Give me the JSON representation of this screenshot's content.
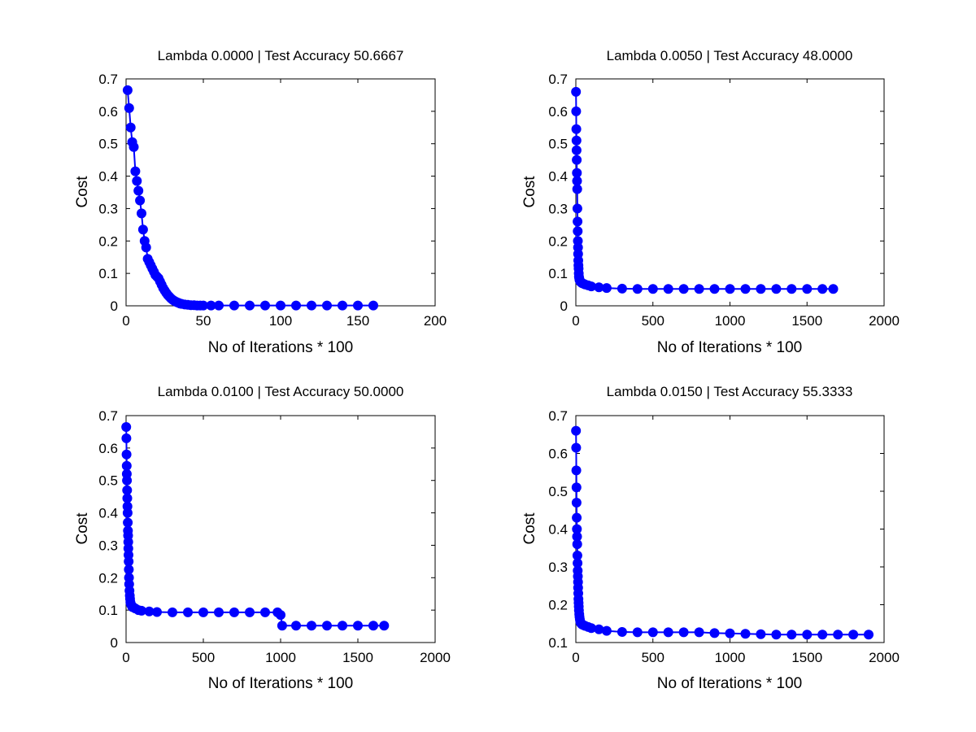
{
  "colors": {
    "series": "#0000ff",
    "axes": "#000000",
    "background": "#ffffff"
  },
  "chart_data": [
    {
      "type": "line",
      "marker": "circle",
      "title": "Lambda 0.0000 | Test Accuracy 50.6667",
      "xlabel": "No of Iterations * 100",
      "ylabel": "Cost",
      "xlim": [
        0,
        200
      ],
      "ylim": [
        0,
        0.7
      ],
      "xticks": [
        0,
        50,
        100,
        150,
        200
      ],
      "yticks": [
        0,
        0.1,
        0.2,
        0.3,
        0.4,
        0.5,
        0.6,
        0.7
      ],
      "grid": false,
      "series": [
        {
          "x": [
            1,
            2,
            3,
            4,
            5,
            6,
            7,
            8,
            9,
            10,
            11,
            12,
            13,
            14,
            15,
            16,
            17,
            18,
            19,
            20,
            21,
            22,
            23,
            24,
            25,
            26,
            27,
            28,
            29,
            30,
            31,
            32,
            33,
            34,
            35,
            36,
            38,
            40,
            42,
            44,
            46,
            48,
            50,
            55,
            60,
            70,
            80,
            90,
            100,
            110,
            120,
            130,
            140,
            150,
            160
          ],
          "y": [
            0.665,
            0.61,
            0.55,
            0.505,
            0.49,
            0.415,
            0.385,
            0.355,
            0.325,
            0.285,
            0.235,
            0.2,
            0.18,
            0.145,
            0.135,
            0.125,
            0.115,
            0.105,
            0.095,
            0.09,
            0.085,
            0.075,
            0.065,
            0.055,
            0.047,
            0.04,
            0.033,
            0.028,
            0.023,
            0.019,
            0.016,
            0.013,
            0.011,
            0.009,
            0.007,
            0.006,
            0.004,
            0.003,
            0.002,
            0.002,
            0.001,
            0.001,
            0.001,
            0.001,
            0.001,
            0.001,
            0.001,
            0.001,
            0.001,
            0.001,
            0.001,
            0.001,
            0.001,
            0.001,
            0.001
          ]
        }
      ]
    },
    {
      "type": "line",
      "marker": "circle",
      "title": "Lambda 0.0050 | Test Accuracy 48.0000",
      "xlabel": "No of Iterations * 100",
      "ylabel": "Cost",
      "xlim": [
        0,
        2000
      ],
      "ylim": [
        0,
        0.7
      ],
      "xticks": [
        0,
        500,
        1000,
        1500,
        2000
      ],
      "yticks": [
        0,
        0.1,
        0.2,
        0.3,
        0.4,
        0.5,
        0.6,
        0.7
      ],
      "grid": false,
      "series": [
        {
          "x": [
            1,
            2,
            3,
            4,
            5,
            6,
            7,
            8,
            9,
            10,
            11,
            12,
            13,
            14,
            15,
            16,
            17,
            18,
            19,
            20,
            22,
            24,
            26,
            28,
            30,
            35,
            40,
            50,
            60,
            80,
            100,
            150,
            200,
            300,
            400,
            500,
            600,
            700,
            800,
            900,
            1000,
            1100,
            1200,
            1300,
            1400,
            1500,
            1600,
            1670
          ],
          "y": [
            0.66,
            0.6,
            0.545,
            0.51,
            0.48,
            0.45,
            0.41,
            0.385,
            0.36,
            0.3,
            0.26,
            0.23,
            0.2,
            0.18,
            0.16,
            0.14,
            0.125,
            0.115,
            0.1,
            0.09,
            0.085,
            0.08,
            0.078,
            0.076,
            0.074,
            0.072,
            0.07,
            0.068,
            0.066,
            0.063,
            0.06,
            0.057,
            0.055,
            0.053,
            0.052,
            0.052,
            0.052,
            0.052,
            0.052,
            0.052,
            0.052,
            0.052,
            0.052,
            0.052,
            0.052,
            0.052,
            0.052,
            0.052
          ]
        }
      ]
    },
    {
      "type": "line",
      "marker": "circle",
      "title": "Lambda 0.0100 | Test Accuracy 50.0000",
      "xlabel": "No of Iterations * 100",
      "ylabel": "Cost",
      "xlim": [
        0,
        2000
      ],
      "ylim": [
        0,
        0.7
      ],
      "xticks": [
        0,
        500,
        1000,
        1500,
        2000
      ],
      "yticks": [
        0,
        0.1,
        0.2,
        0.3,
        0.4,
        0.5,
        0.6,
        0.7
      ],
      "grid": false,
      "series": [
        {
          "x": [
            1,
            2,
            3,
            4,
            5,
            6,
            7,
            8,
            9,
            10,
            11,
            12,
            13,
            14,
            15,
            16,
            17,
            18,
            19,
            20,
            22,
            24,
            26,
            28,
            30,
            35,
            40,
            50,
            60,
            80,
            100,
            150,
            200,
            300,
            400,
            500,
            600,
            700,
            800,
            900,
            980,
            1000,
            1010,
            1100,
            1200,
            1300,
            1400,
            1500,
            1600,
            1670
          ],
          "y": [
            0.665,
            0.63,
            0.58,
            0.545,
            0.52,
            0.5,
            0.47,
            0.445,
            0.42,
            0.4,
            0.37,
            0.345,
            0.33,
            0.31,
            0.29,
            0.27,
            0.25,
            0.225,
            0.2,
            0.18,
            0.16,
            0.145,
            0.135,
            0.125,
            0.12,
            0.115,
            0.11,
            0.108,
            0.105,
            0.1,
            0.098,
            0.096,
            0.094,
            0.093,
            0.093,
            0.093,
            0.093,
            0.093,
            0.093,
            0.093,
            0.093,
            0.085,
            0.052,
            0.052,
            0.052,
            0.052,
            0.052,
            0.052,
            0.052,
            0.052
          ]
        }
      ]
    },
    {
      "type": "line",
      "marker": "circle",
      "title": "Lambda 0.0150 | Test Accuracy 55.3333",
      "xlabel": "No of Iterations * 100",
      "ylabel": "Cost",
      "xlim": [
        0,
        2000
      ],
      "ylim": [
        0.1,
        0.7
      ],
      "xticks": [
        0,
        500,
        1000,
        1500,
        2000
      ],
      "yticks": [
        0.1,
        0.2,
        0.3,
        0.4,
        0.5,
        0.6,
        0.7
      ],
      "grid": false,
      "series": [
        {
          "x": [
            1,
            2,
            3,
            4,
            5,
            6,
            7,
            8,
            9,
            10,
            11,
            12,
            13,
            14,
            15,
            16,
            17,
            18,
            19,
            20,
            22,
            24,
            26,
            28,
            30,
            35,
            40,
            50,
            60,
            80,
            100,
            150,
            200,
            300,
            400,
            500,
            600,
            700,
            800,
            900,
            1000,
            1100,
            1200,
            1300,
            1400,
            1500,
            1600,
            1700,
            1800,
            1900
          ],
          "y": [
            0.66,
            0.615,
            0.555,
            0.51,
            0.47,
            0.43,
            0.4,
            0.38,
            0.36,
            0.33,
            0.31,
            0.29,
            0.275,
            0.26,
            0.245,
            0.23,
            0.215,
            0.205,
            0.195,
            0.185,
            0.175,
            0.168,
            0.162,
            0.157,
            0.153,
            0.15,
            0.148,
            0.146,
            0.144,
            0.141,
            0.138,
            0.135,
            0.131,
            0.128,
            0.127,
            0.127,
            0.127,
            0.127,
            0.127,
            0.125,
            0.124,
            0.123,
            0.122,
            0.121,
            0.121,
            0.121,
            0.121,
            0.121,
            0.121,
            0.121
          ]
        }
      ]
    }
  ]
}
